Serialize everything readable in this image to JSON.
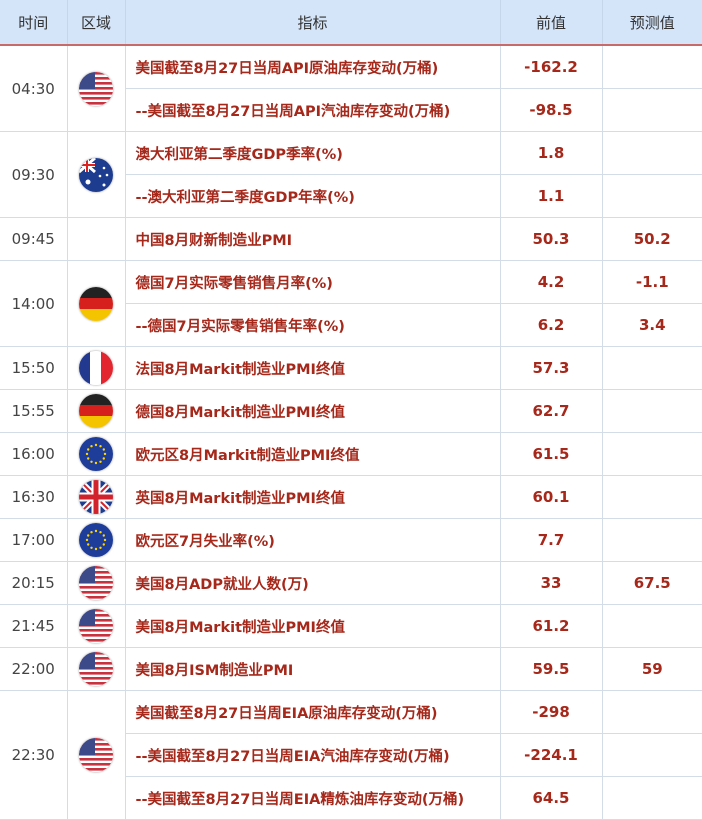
{
  "headers": [
    "时间",
    "区域",
    "指标",
    "前值",
    "预测值"
  ],
  "groups": [
    {
      "time": "04:30",
      "flag": "us-flag-icon",
      "rows": [
        [
          "美国截至8月27日当周API原油库存变动(万桶)",
          "-162.2",
          ""
        ],
        [
          "--美国截至8月27日当周API汽油库存变动(万桶)",
          "-98.5",
          ""
        ]
      ]
    },
    {
      "time": "09:30",
      "flag": "australia-flag-icon",
      "rows": [
        [
          "澳大利亚第二季度GDP季率(%)",
          "1.8",
          ""
        ],
        [
          "--澳大利亚第二季度GDP年率(%)",
          "1.1",
          ""
        ]
      ]
    },
    {
      "time": "09:45",
      "flag": "",
      "rows": [
        [
          "中国8月财新制造业PMI",
          "50.3",
          "50.2"
        ]
      ]
    },
    {
      "time": "14:00",
      "flag": "germany-flag-icon",
      "rows": [
        [
          "德国7月实际零售销售月率(%)",
          "4.2",
          "-1.1"
        ],
        [
          "--德国7月实际零售销售年率(%)",
          "6.2",
          "3.4"
        ]
      ]
    },
    {
      "time": "15:50",
      "flag": "france-flag-icon",
      "rows": [
        [
          "法国8月Markit制造业PMI终值",
          "57.3",
          ""
        ]
      ]
    },
    {
      "time": "15:55",
      "flag": "germany-flag-icon",
      "rows": [
        [
          "德国8月Markit制造业PMI终值",
          "62.7",
          ""
        ]
      ]
    },
    {
      "time": "16:00",
      "flag": "eu-flag-icon",
      "rows": [
        [
          "欧元区8月Markit制造业PMI终值",
          "61.5",
          ""
        ]
      ]
    },
    {
      "time": "16:30",
      "flag": "uk-flag-icon",
      "rows": [
        [
          "英国8月Markit制造业PMI终值",
          "60.1",
          ""
        ]
      ]
    },
    {
      "time": "17:00",
      "flag": "eu-flag-icon",
      "rows": [
        [
          "欧元区7月失业率(%)",
          "7.7",
          ""
        ]
      ]
    },
    {
      "time": "20:15",
      "flag": "us-flag-icon",
      "rows": [
        [
          "美国8月ADP就业人数(万)",
          "33",
          "67.5"
        ]
      ]
    },
    {
      "time": "21:45",
      "flag": "us-flag-icon",
      "rows": [
        [
          "美国8月Markit制造业PMI终值",
          "61.2",
          ""
        ]
      ]
    },
    {
      "time": "22:00",
      "flag": "us-flag-icon",
      "rows": [
        [
          "美国8月ISM制造业PMI",
          "59.5",
          "59"
        ]
      ]
    },
    {
      "time": "22:30",
      "flag": "us-flag-icon",
      "rows": [
        [
          "美国截至8月27日当周EIA原油库存变动(万桶)",
          "-298",
          ""
        ],
        [
          "--美国截至8月27日当周EIA汽油库存变动(万桶)",
          "-224.1",
          ""
        ],
        [
          "--美国截至8月27日当周EIA精炼油库存变动(万桶)",
          "64.5",
          ""
        ]
      ]
    }
  ],
  "colors": {
    "header_bg": "#d5e5f9",
    "value_text": "#a5281b"
  }
}
